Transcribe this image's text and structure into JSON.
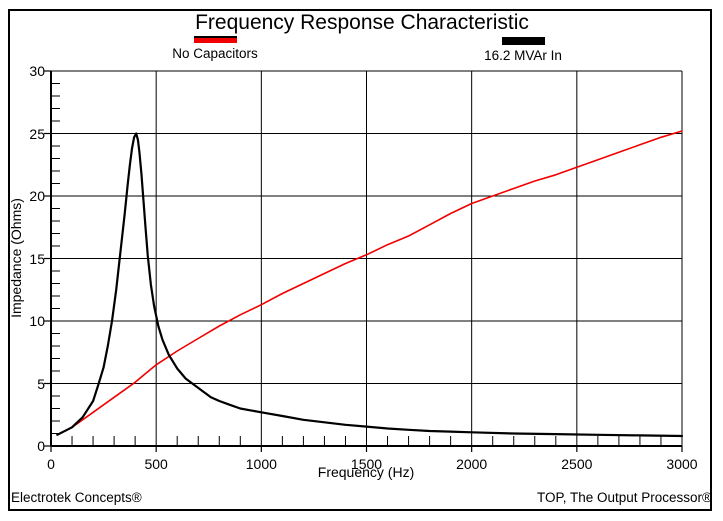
{
  "title": "Frequency Response Characteristic",
  "legend": [
    {
      "label": "No Capacitors",
      "color": "#f20000"
    },
    {
      "label": "16.2 MVAr In",
      "color": "#000000"
    }
  ],
  "footer": {
    "left": "Electrotek Concepts®",
    "right": "TOP, The Output Processor®"
  },
  "chart_data": {
    "type": "line",
    "title": "Frequency Response Characteristic",
    "xlabel": "Frequency (Hz)",
    "ylabel": "Impedance (Ohms)",
    "xlim": [
      0,
      3000
    ],
    "ylim": [
      0,
      30
    ],
    "x_ticks": [
      0,
      500,
      1000,
      1500,
      2000,
      2500,
      3000
    ],
    "y_ticks": [
      0,
      5,
      10,
      15,
      20,
      25,
      30
    ],
    "x_minor_step": 100,
    "y_minor_step": 1,
    "grid": true,
    "legend_position": "top",
    "grid_color": "#000000",
    "series": [
      {
        "name": "No Capacitors",
        "color": "#f20000",
        "width": 1.6,
        "points": [
          [
            30,
            0.9
          ],
          [
            100,
            1.5
          ],
          [
            150,
            2.1
          ],
          [
            200,
            2.7
          ],
          [
            250,
            3.3
          ],
          [
            300,
            3.9
          ],
          [
            350,
            4.5
          ],
          [
            400,
            5.1
          ],
          [
            450,
            5.8
          ],
          [
            500,
            6.5
          ],
          [
            600,
            7.6
          ],
          [
            700,
            8.6
          ],
          [
            800,
            9.6
          ],
          [
            900,
            10.5
          ],
          [
            1000,
            11.3
          ],
          [
            1100,
            12.2
          ],
          [
            1200,
            13.0
          ],
          [
            1300,
            13.8
          ],
          [
            1400,
            14.6
          ],
          [
            1500,
            15.3
          ],
          [
            1600,
            16.1
          ],
          [
            1700,
            16.8
          ],
          [
            1800,
            17.7
          ],
          [
            1900,
            18.6
          ],
          [
            2000,
            19.4
          ],
          [
            2100,
            20.0
          ],
          [
            2200,
            20.6
          ],
          [
            2300,
            21.2
          ],
          [
            2400,
            21.7
          ],
          [
            2500,
            22.3
          ],
          [
            2600,
            22.9
          ],
          [
            2700,
            23.5
          ],
          [
            2800,
            24.1
          ],
          [
            2900,
            24.7
          ],
          [
            3000,
            25.2
          ]
        ]
      },
      {
        "name": "16.2 MVAr In",
        "color": "#000000",
        "width": 2.2,
        "points": [
          [
            30,
            0.9
          ],
          [
            100,
            1.5
          ],
          [
            150,
            2.3
          ],
          [
            200,
            3.6
          ],
          [
            225,
            4.9
          ],
          [
            250,
            6.3
          ],
          [
            270,
            8.0
          ],
          [
            290,
            10.0
          ],
          [
            310,
            12.5
          ],
          [
            330,
            15.5
          ],
          [
            350,
            18.5
          ],
          [
            365,
            21.0
          ],
          [
            375,
            22.5
          ],
          [
            385,
            23.8
          ],
          [
            395,
            24.7
          ],
          [
            405,
            25.0
          ],
          [
            413,
            24.5
          ],
          [
            420,
            23.6
          ],
          [
            430,
            21.8
          ],
          [
            440,
            19.6
          ],
          [
            450,
            17.4
          ],
          [
            460,
            15.2
          ],
          [
            475,
            12.9
          ],
          [
            490,
            11.2
          ],
          [
            510,
            9.6
          ],
          [
            530,
            8.5
          ],
          [
            560,
            7.3
          ],
          [
            600,
            6.2
          ],
          [
            640,
            5.4
          ],
          [
            680,
            4.9
          ],
          [
            720,
            4.4
          ],
          [
            760,
            3.9
          ],
          [
            800,
            3.6
          ],
          [
            850,
            3.3
          ],
          [
            900,
            3.0
          ],
          [
            950,
            2.85
          ],
          [
            1000,
            2.7
          ],
          [
            1100,
            2.4
          ],
          [
            1200,
            2.1
          ],
          [
            1300,
            1.9
          ],
          [
            1400,
            1.7
          ],
          [
            1500,
            1.55
          ],
          [
            1600,
            1.4
          ],
          [
            1700,
            1.3
          ],
          [
            1800,
            1.2
          ],
          [
            1900,
            1.15
          ],
          [
            2000,
            1.1
          ],
          [
            2200,
            1.0
          ],
          [
            2400,
            0.95
          ],
          [
            2600,
            0.9
          ],
          [
            2800,
            0.85
          ],
          [
            3000,
            0.8
          ]
        ]
      }
    ]
  }
}
